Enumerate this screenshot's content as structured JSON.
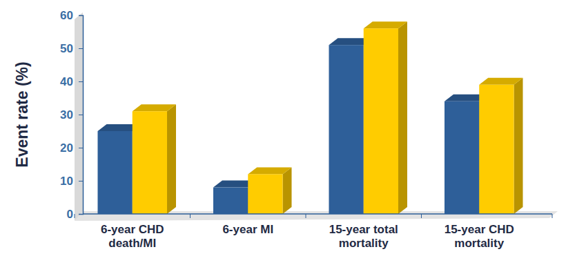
{
  "chart_data": {
    "type": "bar",
    "y_label": "Event rate (%)",
    "categories": [
      "6-year CHD\ndeath/MI",
      "6-year MI",
      "15-year total\nmortality",
      "15-year CHD\nmortality"
    ],
    "series": [
      {
        "color": "#2e5f99",
        "values": [
          25,
          8,
          51,
          34
        ]
      },
      {
        "color": "#ffcc00",
        "values": [
          31,
          12,
          56,
          39
        ]
      }
    ],
    "ylim": [
      0,
      60
    ],
    "yticks": [
      0,
      10,
      20,
      30,
      40,
      50,
      60
    ],
    "grid": false
  }
}
